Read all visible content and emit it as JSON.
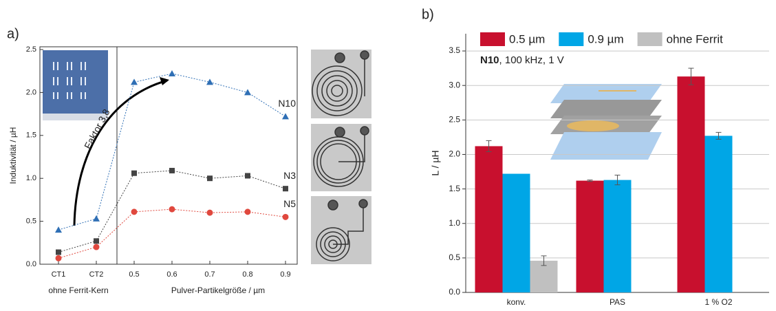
{
  "chart_data": [
    {
      "type": "line",
      "panel_label": "a)",
      "categories": [
        "CT1",
        "CT2",
        "0.5",
        "0.6",
        "0.7",
        "0.8",
        "0.9"
      ],
      "series": [
        {
          "name": "N10",
          "color": "#2f6fb5",
          "marker": "triangle",
          "values": [
            0.4,
            0.53,
            2.12,
            2.22,
            2.12,
            2.0,
            1.72
          ]
        },
        {
          "name": "N3",
          "color": "#444444",
          "marker": "square",
          "values": [
            0.14,
            0.27,
            1.06,
            1.09,
            1.0,
            1.03,
            0.88
          ]
        },
        {
          "name": "N5",
          "color": "#e0483e",
          "marker": "circle",
          "values": [
            0.07,
            0.2,
            0.61,
            0.64,
            0.6,
            0.61,
            0.55
          ]
        }
      ],
      "ylim": [
        0,
        2.5
      ],
      "yticks": [
        {
          "value": 0,
          "label": "0.0"
        },
        0.5,
        {
          "value": 1,
          "label": "1.0"
        },
        1.5,
        {
          "value": 2,
          "label": "2.0"
        },
        2.5
      ],
      "y_label": "Induktivität / µH",
      "x_label_left": "ohne Ferrit-Kern",
      "x_label_right": "Pulver-Partikelgröße / µm",
      "annotation": "Faktor 3,8"
    },
    {
      "type": "bar",
      "panel_label": "b)",
      "categories": [
        "konv.",
        "PAS",
        "1 % O2"
      ],
      "series": [
        {
          "name": "0.5 µm",
          "color": "#c8102e",
          "values": [
            2.12,
            1.62,
            3.13
          ],
          "errors": [
            0.08,
            0.01,
            0.12
          ]
        },
        {
          "name": "0.9 µm",
          "color": "#00a6e6",
          "values": [
            1.72,
            1.63,
            2.27
          ],
          "errors": [
            null,
            0.07,
            0.05
          ]
        },
        {
          "name": "ohne Ferrit",
          "color": "#c0c0c0",
          "values": [
            0.46,
            null,
            null
          ],
          "errors": [
            0.07,
            null,
            null
          ]
        }
      ],
      "ylim": [
        0,
        3.75
      ],
      "yticks": [
        {
          "value": 0,
          "label": "0.0"
        },
        0.5,
        {
          "value": 1,
          "label": "1.0"
        },
        1.5,
        {
          "value": 2,
          "label": "2.0"
        },
        2.5,
        {
          "value": 3,
          "label": "3.0"
        },
        3.5
      ],
      "y_label": "L / µH",
      "annotation_bold": "N10",
      "annotation": ", 100 kHz, 1 V",
      "grid": true
    }
  ]
}
